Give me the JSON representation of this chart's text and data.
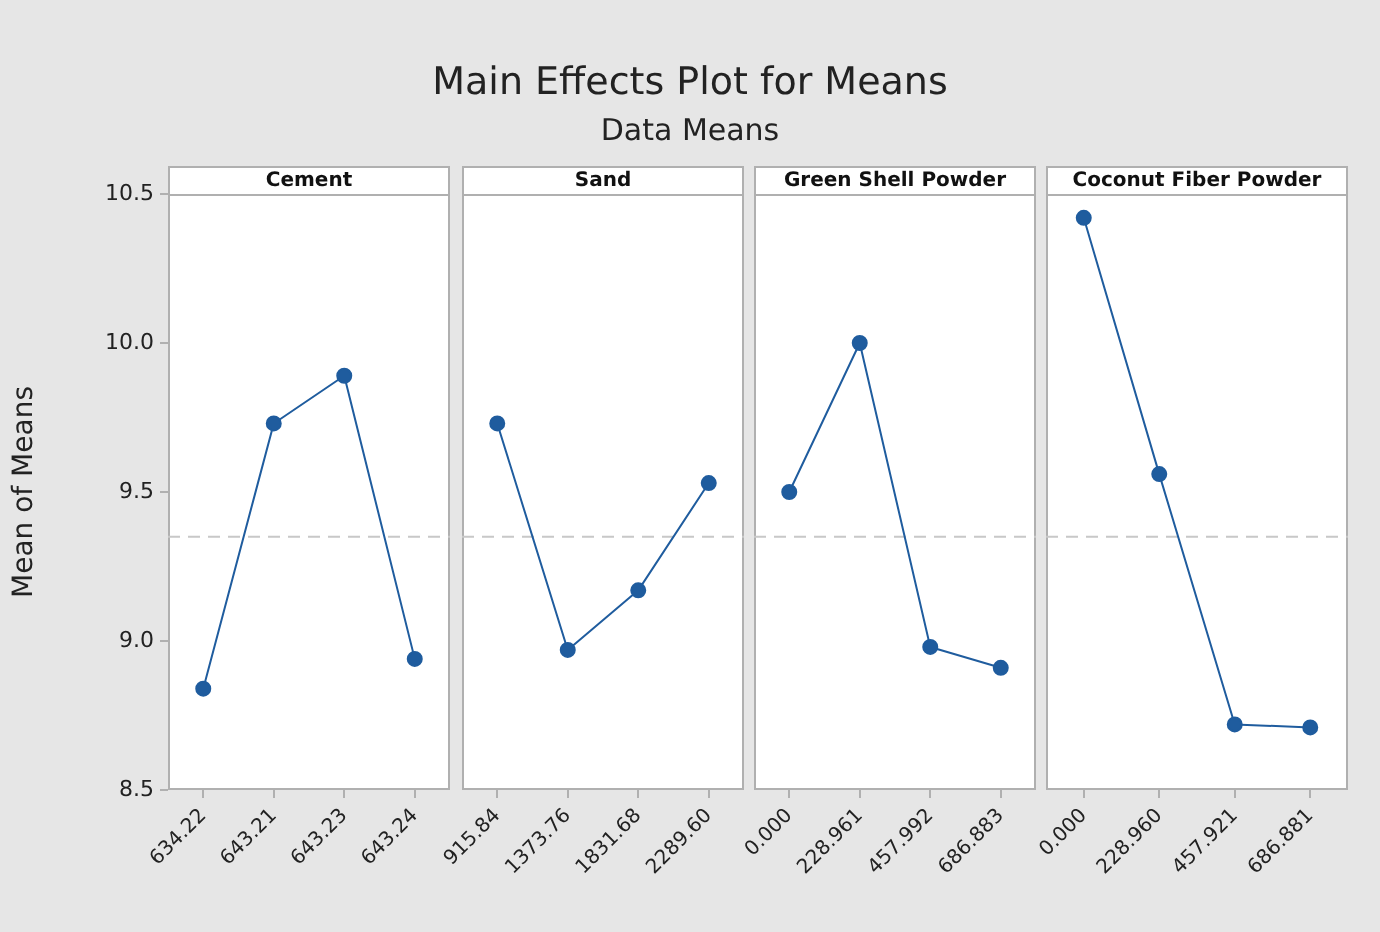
{
  "chart_data": [
    {
      "type": "line",
      "title": "Cement",
      "ylabel": "Mean of Means",
      "annotations": [
        "Main Effects Plot for Means",
        "Data Means"
      ],
      "categories": [
        "634.22",
        "643.21",
        "643.23",
        "643.24"
      ],
      "series": [
        {
          "color": "#1f5c9e",
          "values": [
            8.84,
            9.73,
            9.89,
            8.94
          ]
        }
      ],
      "ylim": [
        8.5,
        10.5
      ],
      "yticks": [
        8.5,
        {
          "value": 9,
          "label": "9.0"
        },
        9.5,
        {
          "value": 10,
          "label": "10.0"
        },
        10.5
      ],
      "marker": "circle",
      "grid": false,
      "legend": false,
      "ref_lines": [
        {
          "axis": "y",
          "value": 9.35,
          "color": "#c8c8c8",
          "line_style": "dashed"
        }
      ]
    },
    {
      "type": "line",
      "title": "Sand",
      "categories": [
        "915.84",
        "1373.76",
        "1831.68",
        "2289.60"
      ],
      "series": [
        {
          "color": "#1f5c9e",
          "values": [
            9.73,
            8.97,
            9.17,
            9.53
          ]
        }
      ],
      "ylim": [
        8.5,
        10.5
      ],
      "tick_labels": "x",
      "marker": "circle",
      "grid": false,
      "legend": false,
      "ref_lines": [
        {
          "axis": "y",
          "value": 9.35,
          "color": "#c8c8c8",
          "line_style": "dashed"
        }
      ]
    },
    {
      "type": "line",
      "title": "Green Shell Powder",
      "categories": [
        "0.000",
        "228.961",
        "457.992",
        "686.883"
      ],
      "series": [
        {
          "color": "#1f5c9e",
          "values": [
            9.5,
            10.0,
            8.98,
            8.91
          ]
        }
      ],
      "ylim": [
        8.5,
        10.5
      ],
      "tick_labels": "x",
      "marker": "circle",
      "grid": false,
      "legend": false,
      "ref_lines": [
        {
          "axis": "y",
          "value": 9.35,
          "color": "#c8c8c8",
          "line_style": "dashed"
        }
      ]
    },
    {
      "type": "line",
      "title": "Coconut Fiber Powder",
      "categories": [
        "0.000",
        "228.960",
        "457.921",
        "686.881"
      ],
      "series": [
        {
          "color": "#1f5c9e",
          "values": [
            10.42,
            9.56,
            8.72,
            8.71
          ]
        }
      ],
      "ylim": [
        8.5,
        10.5
      ],
      "tick_labels": "x",
      "marker": "circle",
      "grid": false,
      "legend": false,
      "ref_lines": [
        {
          "axis": "y",
          "value": 9.35,
          "color": "#c8c8c8",
          "line_style": "dashed"
        }
      ]
    }
  ]
}
